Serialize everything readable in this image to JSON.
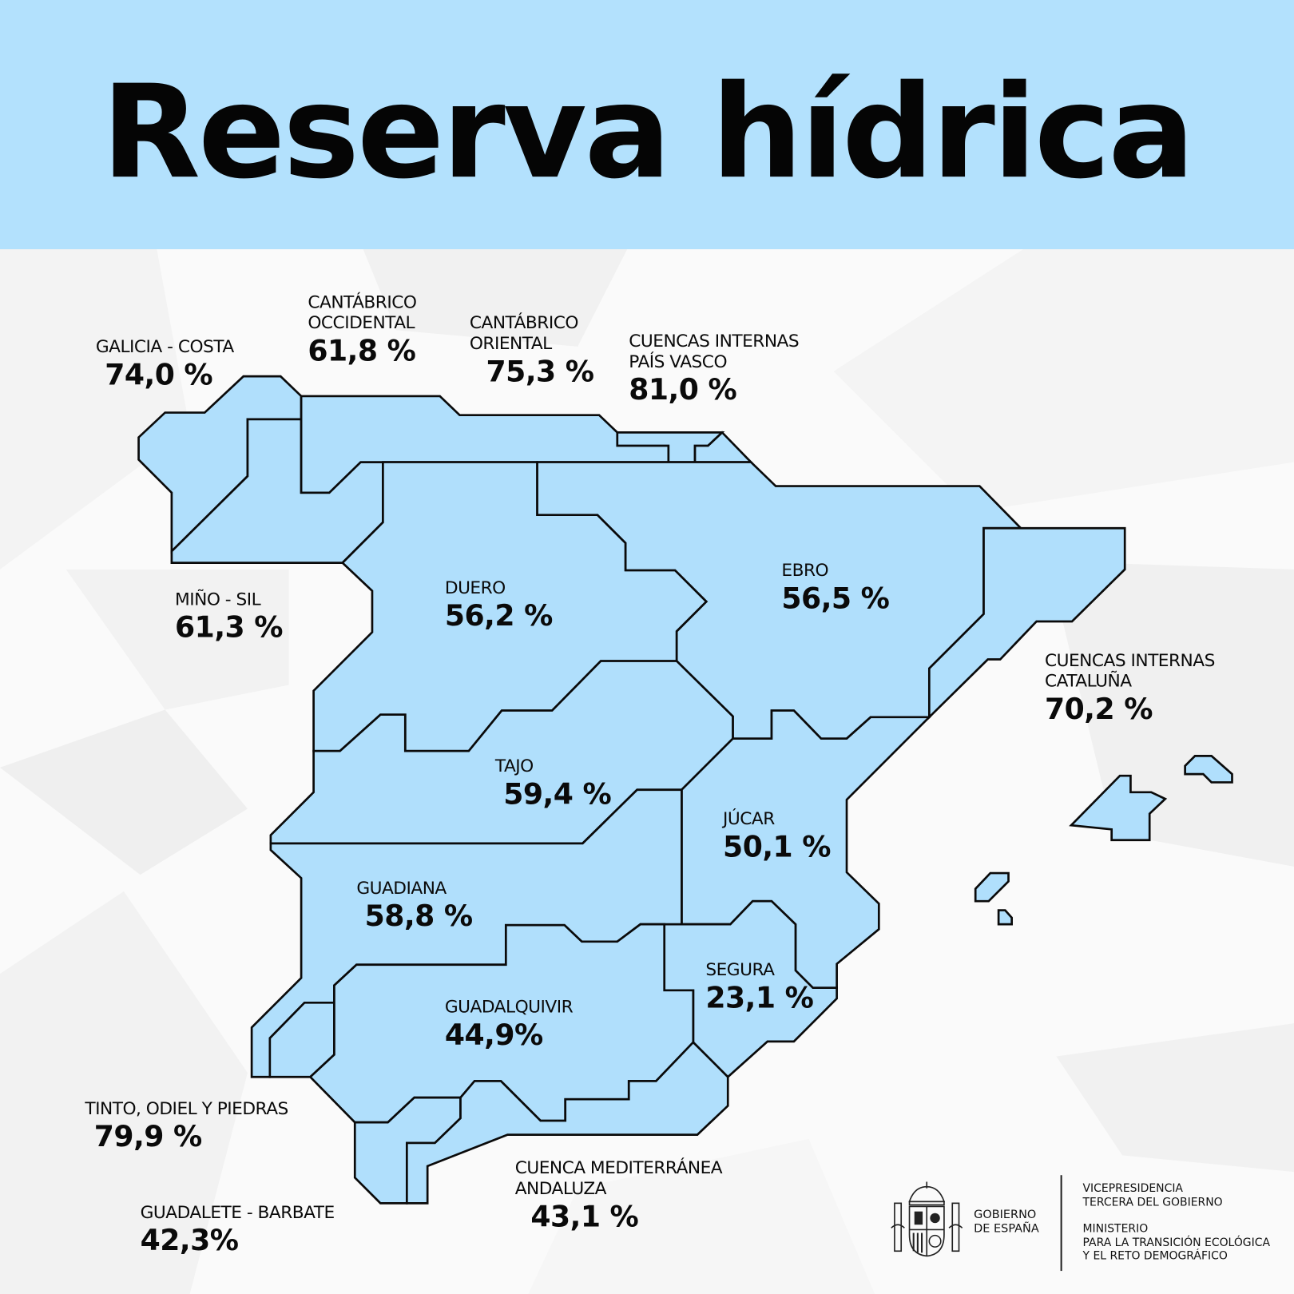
{
  "header": {
    "title": "Reserva hídrica",
    "background_color": "#b3e1fd"
  },
  "map": {
    "fill_color": "#b0dffc",
    "stroke_color": "#0a0a0a",
    "basins": [
      {
        "name": "GALICIA - COSTA",
        "value": "74,0 %"
      },
      {
        "name": "CANTÁBRICO OCCIDENTAL",
        "name_lines": [
          "CANTÁBRICO",
          "OCCIDENTAL"
        ],
        "value": "61,8 %"
      },
      {
        "name": "CANTÁBRICO ORIENTAL",
        "name_lines": [
          "CANTÁBRICO",
          "ORIENTAL"
        ],
        "value": "75,3 %"
      },
      {
        "name": "CUENCAS INTERNAS PAÍS VASCO",
        "name_lines": [
          "CUENCAS INTERNAS",
          "PAÍS VASCO"
        ],
        "value": "81,0 %"
      },
      {
        "name": "MIÑO - SIL",
        "value": "61,3 %"
      },
      {
        "name": "DUERO",
        "value": "56,2 %"
      },
      {
        "name": "EBRO",
        "value": "56,5 %"
      },
      {
        "name": "CUENCAS INTERNAS CATALUÑA",
        "name_lines": [
          "CUENCAS INTERNAS",
          "CATALUÑA"
        ],
        "value": "70,2 %"
      },
      {
        "name": "TAJO",
        "value": "59,4 %"
      },
      {
        "name": "JÚCAR",
        "value": "50,1 %"
      },
      {
        "name": "GUADIANA",
        "value": "58,8 %"
      },
      {
        "name": "SEGURA",
        "value": "23,1 %"
      },
      {
        "name": "GUADALQUIVIR",
        "value": "44,9%"
      },
      {
        "name": "TINTO, ODIEL Y PIEDRAS",
        "value": "79,9 %"
      },
      {
        "name": "GUADALETE - BARBATE",
        "value": "42,3%"
      },
      {
        "name": "CUENCA MEDITERRÁNEA ANDALUZA",
        "name_lines": [
          "CUENCA MEDITERRÁNEA",
          "ANDALUZA"
        ],
        "value": "43,1 %"
      }
    ]
  },
  "footer": {
    "gobierno_lines": [
      "GOBIERNO",
      "DE ESPAÑA"
    ],
    "vicepresidencia_lines": [
      "VICEPRESIDENCIA",
      "TERCERA DEL GOBIERNO"
    ],
    "ministerio_lines": [
      "MINISTERIO",
      "PARA LA TRANSICIÓN ECOLÓGICA",
      "Y EL RETO DEMOGRÁFICO"
    ],
    "coat_of_arms_icon": "spain-coat-of-arms-icon"
  }
}
